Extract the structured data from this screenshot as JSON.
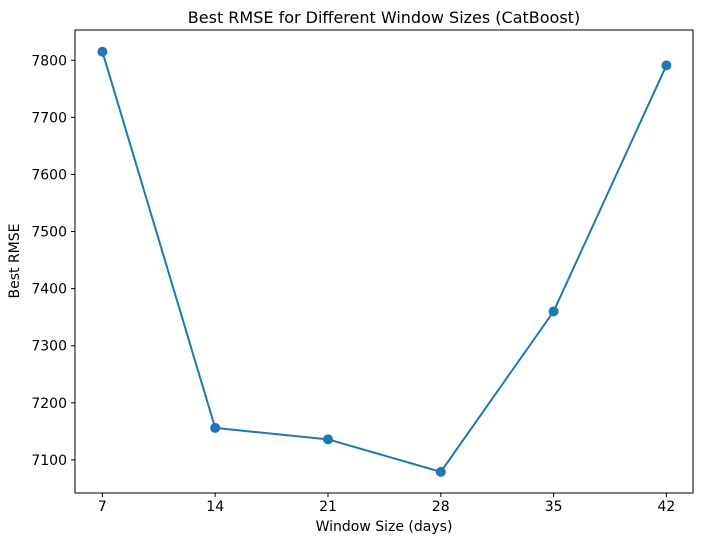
{
  "chart_data": {
    "type": "line",
    "title": "Best RMSE for Different Window Sizes (CatBoost)",
    "xlabel": "Window Size (days)",
    "ylabel": "Best RMSE",
    "series": [
      {
        "name": "Best RMSE",
        "x": [
          7,
          14,
          21,
          28,
          35,
          42
        ],
        "y": [
          7815,
          7156,
          7136,
          7079,
          7360,
          7791
        ]
      }
    ],
    "xticks": [
      7,
      14,
      21,
      28,
      35,
      42
    ],
    "yticks": [
      7100,
      7200,
      7300,
      7400,
      7500,
      7600,
      7700,
      7800
    ],
    "xlim": [
      5.3,
      43.65
    ],
    "ylim": [
      7042,
      7853
    ],
    "grid": false,
    "legend": null,
    "marker": "circle",
    "line_color": "#1f77b4",
    "axis_color": "#000000",
    "background_color": "#ffffff"
  }
}
